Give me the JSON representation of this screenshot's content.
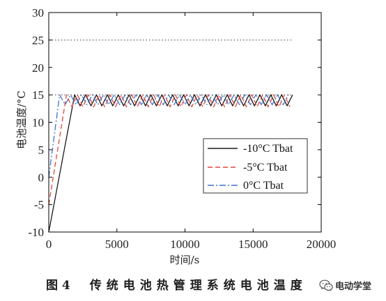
{
  "chart_data": {
    "type": "line",
    "xlabel": "时间/s",
    "ylabel": "电池温度/°C",
    "xlim": [
      0,
      20000
    ],
    "ylim": [
      -10,
      30
    ],
    "x_ticks": [
      0,
      5000,
      10000,
      15000,
      20000
    ],
    "y_ticks": [
      -10,
      -5,
      0,
      5,
      10,
      15,
      20,
      25,
      30
    ],
    "grid": false,
    "legend": {
      "placement": "bottom-right"
    },
    "reference_lines": [
      {
        "y": 25,
        "x": [
          0,
          17800
        ],
        "color": "#333333",
        "line_style": "dotted"
      },
      {
        "y": 15,
        "x": [
          0,
          17800
        ],
        "color": "#333333",
        "line_style": "dotted"
      }
    ],
    "series": [
      {
        "name": "-10°C Tbat",
        "color": "#1a1a1a",
        "line_style": "solid",
        "x": [
          0,
          1900,
          2300,
          2700,
          3100,
          3500,
          3900,
          4300,
          4700,
          5100,
          5500,
          5900,
          6300,
          6700,
          7100,
          7500,
          7900,
          8300,
          8700,
          9100,
          9500,
          9900,
          10300,
          10700,
          11100,
          11500,
          11900,
          12300,
          12700,
          13100,
          13500,
          13900,
          14300,
          14700,
          15100,
          15500,
          15900,
          16300,
          16700,
          17100,
          17500,
          17900
        ],
        "y": [
          -10,
          15,
          13,
          15,
          13,
          15,
          13,
          15,
          13,
          15,
          13,
          15,
          13,
          15,
          13,
          15,
          13,
          15,
          13,
          15,
          13,
          15,
          13,
          15,
          13,
          15,
          13,
          15,
          13,
          15,
          13,
          15,
          13,
          15,
          13,
          15,
          13,
          15,
          13,
          15,
          13,
          15
        ]
      },
      {
        "name": "-5°C Tbat",
        "color": "#e8443a",
        "line_style": "dashed",
        "x": [
          0,
          1300,
          1700,
          2100,
          2500,
          2900,
          3300,
          3700,
          4100,
          4500,
          4900,
          5300,
          5700,
          6100,
          6500,
          6900,
          7300,
          7700,
          8100,
          8500,
          8900,
          9300,
          9700,
          10100,
          10500,
          10900,
          11300,
          11700,
          12100,
          12500,
          12900,
          13300,
          13700,
          14100,
          14500,
          14900,
          15300,
          15700,
          16100,
          16500,
          16900,
          17300,
          17700
        ],
        "y": [
          -5,
          15,
          12.8,
          15,
          12.8,
          15,
          12.8,
          15,
          12.8,
          15,
          12.8,
          15,
          12.8,
          15,
          12.8,
          15,
          12.8,
          15,
          12.8,
          15,
          12.8,
          15,
          12.8,
          15,
          12.8,
          15,
          12.8,
          15,
          12.8,
          15,
          12.8,
          15,
          12.8,
          15,
          12.8,
          15,
          12.8,
          15,
          12.8,
          15,
          12.8,
          15,
          12.8
        ]
      },
      {
        "name": "0°C Tbat",
        "color": "#3f74c9",
        "line_style": "dashdot",
        "x": [
          0,
          800,
          1200,
          1600,
          2000,
          2400,
          2800,
          3200,
          3600,
          4000,
          4400,
          4800,
          5200,
          5600,
          6000,
          6400,
          6800,
          7200,
          7600,
          8000,
          8400,
          8800,
          9200,
          9600,
          10000,
          10400,
          10800,
          11200,
          11600,
          12000,
          12400,
          12800,
          13200,
          13600,
          14000,
          14400,
          14800,
          15200,
          15600,
          16000,
          16400,
          16800,
          17200,
          17600
        ],
        "y": [
          0,
          15,
          13.2,
          15,
          13.2,
          15,
          13.2,
          15,
          13.2,
          15,
          13.2,
          15,
          13.2,
          15,
          13.2,
          15,
          13.2,
          15,
          13.2,
          15,
          13.2,
          15,
          13.2,
          15,
          13.2,
          15,
          13.2,
          15,
          13.2,
          15,
          13.2,
          15,
          13.2,
          15,
          13.2,
          15,
          13.2,
          15,
          13.2,
          15,
          13.2,
          15,
          13.2,
          15
        ]
      }
    ]
  },
  "caption": {
    "number": "图 4",
    "title": "传统电池热管理系统电池温度"
  },
  "watermark": {
    "icon": "wechat-icon",
    "text": "电动学堂"
  }
}
